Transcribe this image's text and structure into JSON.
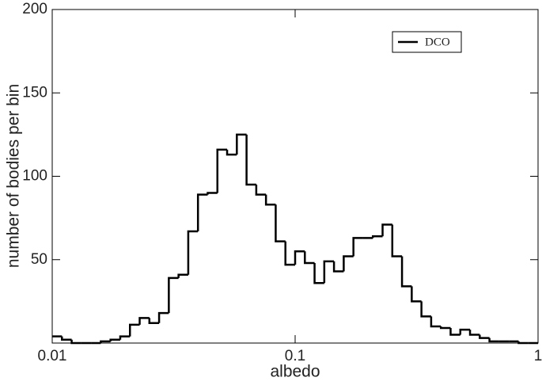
{
  "chart_data": {
    "type": "histogram",
    "x_label": "albedo",
    "y_label": "number of bodies per bin",
    "xscale": "log",
    "xlim": [
      0.01,
      1
    ],
    "xticks": [
      0.01,
      0.1,
      1
    ],
    "ylim": [
      0,
      200
    ],
    "yticks": [
      50,
      100,
      150,
      200
    ],
    "bins": [
      0.01,
      0.010965,
      0.012023,
      0.013183,
      0.014454,
      0.015849,
      0.017378,
      0.019055,
      0.020893,
      0.022909,
      0.025119,
      0.027542,
      0.0302,
      0.033113,
      0.036308,
      0.039811,
      0.043652,
      0.047863,
      0.052481,
      0.057544,
      0.063096,
      0.069183,
      0.075858,
      0.083176,
      0.091201,
      0.1,
      0.10965,
      0.12023,
      0.13183,
      0.14454,
      0.15849,
      0.17378,
      0.19055,
      0.20893,
      0.22909,
      0.25119,
      0.27542,
      0.302,
      0.33113,
      0.36308,
      0.39811,
      0.43652,
      0.47863,
      0.52481,
      0.57544,
      0.63096,
      0.69183,
      0.75858,
      0.83176,
      0.91201,
      1
    ],
    "series": [
      {
        "name": "DCO",
        "color": "#000000",
        "values": [
          4,
          2,
          0,
          0,
          0,
          1,
          2,
          4,
          11,
          15,
          12,
          18,
          39,
          41,
          67,
          89,
          90,
          116,
          113,
          125,
          95,
          89,
          83,
          61,
          47,
          55,
          48,
          36,
          49,
          43,
          52,
          63,
          63,
          64,
          71,
          52,
          34,
          25,
          16,
          10,
          9,
          5,
          8,
          5,
          3,
          1,
          1,
          1,
          0,
          0
        ]
      }
    ],
    "legend": "top-right"
  }
}
